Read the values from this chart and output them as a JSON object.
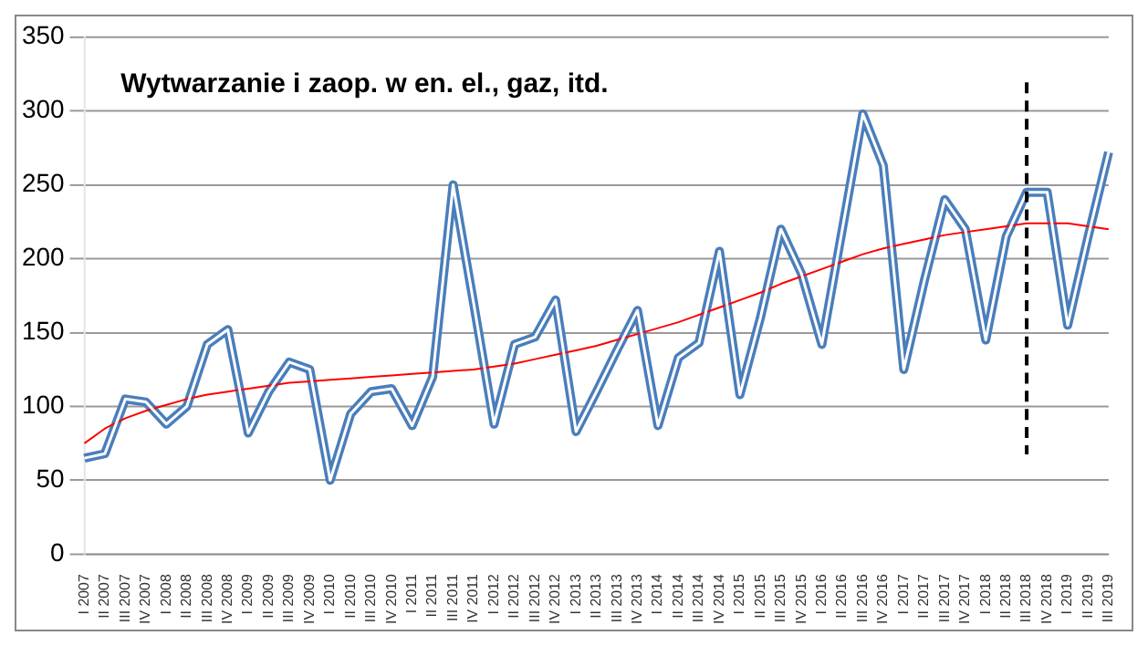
{
  "chart_data": {
    "type": "line",
    "title": "Wytwarzanie i zaop. w en. el., gaz, itd.",
    "categories": [
      "I 2007",
      "II 2007",
      "III 2007",
      "IV 2007",
      "I 2008",
      "II 2008",
      "III 2008",
      "IV 2008",
      "I 2009",
      "II 2009",
      "III 2009",
      "IV 2009",
      "I 2010",
      "II 2010",
      "III 2010",
      "IV 2010",
      "I 2011",
      "II 2011",
      "III 2011",
      "IV 2011",
      "I 2012",
      "II 2012",
      "III 2012",
      "IV 2012",
      "I 2013",
      "II 2013",
      "III 2013",
      "IV 2013",
      "I 2014",
      "II 2014",
      "III 2014",
      "IV 2014",
      "I 2015",
      "II 2015",
      "III 2015",
      "IV 2015",
      "I 2016",
      "II 2016",
      "III 2016",
      "IV 2016",
      "I 2017",
      "II 2017",
      "III 2017",
      "IV 2017",
      "I 2018",
      "II 2018",
      "III 2018",
      "IV 2018",
      "I 2019",
      "II 2019",
      "III 2019"
    ],
    "series": [
      {
        "color": "#4a7ebb",
        "values": [
          65,
          68,
          105,
          103,
          88,
          100,
          142,
          152,
          82,
          110,
          130,
          125,
          50,
          95,
          110,
          112,
          87,
          120,
          250,
          170,
          88,
          142,
          147,
          172,
          83,
          110,
          138,
          165,
          87,
          133,
          143,
          205,
          108,
          160,
          220,
          190,
          142,
          220,
          298,
          263,
          125,
          185,
          240,
          220,
          145,
          215,
          245,
          245,
          155,
          215,
          272
        ]
      },
      {
        "color": "#ff0000",
        "values": [
          75,
          85,
          92,
          97,
          101,
          105,
          108,
          110,
          112,
          114,
          116,
          117,
          118,
          119,
          120,
          121,
          122,
          123,
          124,
          125,
          127,
          129,
          132,
          135,
          138,
          141,
          145,
          149,
          153,
          157,
          162,
          167,
          172,
          177,
          183,
          188,
          193,
          198,
          203,
          207,
          210,
          213,
          216,
          218,
          220,
          222,
          224,
          224,
          224,
          222,
          220
        ]
      }
    ],
    "ylim": [
      0,
      350
    ],
    "yticks": [
      0,
      50,
      100,
      150,
      200,
      250,
      300,
      350
    ],
    "grid": "y",
    "legend": false,
    "marker": "none",
    "line_style": "solid",
    "ref_lines": [
      {
        "axis": "x",
        "value": "III 2018",
        "color": "#000000",
        "line_style": "dashed"
      }
    ]
  }
}
